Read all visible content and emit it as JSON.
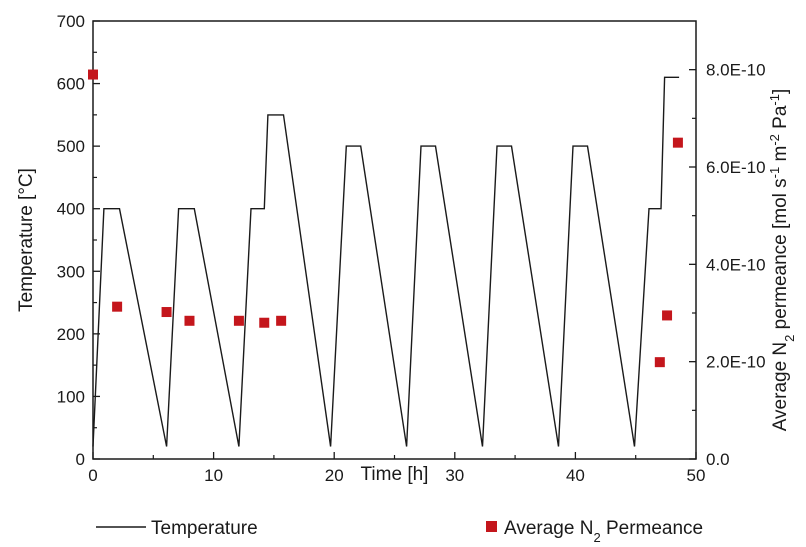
{
  "chart_data": {
    "type": "line",
    "xlabel": "Time [h]",
    "ylabel_left": "Temperature [°C]",
    "ylabel_right": {
      "prefix": "Average N",
      "prefix_sub": "2",
      "middle": " permeance [mol s",
      "exp1": "-1",
      "m_text": " m",
      "exp2": "-2",
      "pa_text": " Pa",
      "exp3": "-1",
      "suffix": "]"
    },
    "xlim": [
      0,
      50
    ],
    "ylim_left": [
      0,
      700
    ],
    "ylim_right": [
      0,
      9e-10
    ],
    "x_ticks": [
      0,
      10,
      20,
      30,
      40,
      50
    ],
    "y_left_ticks": [
      0,
      100,
      200,
      300,
      400,
      500,
      600,
      700
    ],
    "y_right_ticks": [
      {
        "value": 0,
        "label": "0.0"
      },
      {
        "value": 2e-10,
        "label": "2.0E-10"
      },
      {
        "value": 4e-10,
        "label": "4.0E-10"
      },
      {
        "value": 6e-10,
        "label": "6.0E-10"
      },
      {
        "value": 8e-10,
        "label": "8.0E-10"
      }
    ],
    "grid": false,
    "legend_position": "bottom",
    "series": [
      {
        "name": "Temperature",
        "type": "line",
        "axis": "left",
        "color": "#1a1a1a",
        "x": [
          0,
          0.9,
          2.2,
          6.1,
          7.1,
          8.4,
          12.1,
          13.1,
          14.2,
          14.5,
          15.8,
          19.7,
          21.0,
          22.2,
          26.0,
          27.2,
          28.4,
          32.3,
          33.5,
          34.7,
          38.6,
          39.8,
          41.0,
          44.9,
          46.1,
          47.1,
          47.4,
          48.6
        ],
        "y": [
          20,
          400,
          400,
          20,
          400,
          400,
          20,
          400,
          400,
          550,
          550,
          20,
          500,
          500,
          20,
          500,
          500,
          20,
          500,
          500,
          20,
          500,
          500,
          20,
          400,
          400,
          610,
          610
        ]
      },
      {
        "name": "Average N2 Permeance",
        "type": "scatter",
        "axis": "right",
        "color": "#c4161c",
        "x": [
          0,
          2.0,
          6.1,
          8.0,
          12.1,
          14.2,
          15.6,
          47.0,
          47.6,
          48.5
        ],
        "y": [
          7.9e-10,
          3.13e-10,
          3.02e-10,
          2.84e-10,
          2.84e-10,
          2.8e-10,
          2.84e-10,
          1.99e-10,
          2.95e-10,
          6.5e-10
        ]
      }
    ]
  },
  "legend": {
    "line_label": "Temperature",
    "marker_label_prefix": "Average N",
    "marker_label_sub": "2",
    "marker_label_suffix": " Permeance"
  }
}
